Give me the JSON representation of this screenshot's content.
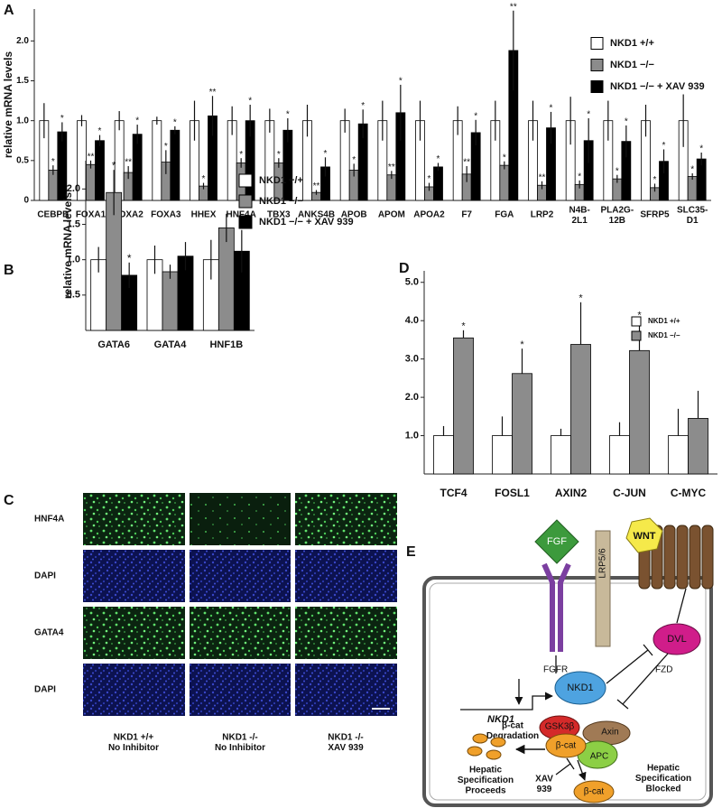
{
  "panel_labels": [
    "A",
    "B",
    "C",
    "D",
    "E"
  ],
  "chart_data": [
    {
      "type": "bar",
      "ylabel": "relative mRNA levels",
      "categories": [
        "CEBPB",
        "FOXA1",
        "FOXA2",
        "FOXA3",
        "HHEX",
        "HNF4A",
        "TBX3",
        "ANKS4B",
        "APOB",
        "APOM",
        "APOA2",
        "F7",
        "FGA",
        "LRP2",
        "N4B-\n2L1",
        "PLA2G-\n12B",
        "SFRP5",
        "SLC35-\nD1"
      ],
      "series": [
        {
          "name": "NKD1 +/+",
          "color": "#ffffff",
          "values": [
            1,
            1,
            1,
            1,
            1,
            1,
            1,
            1,
            1,
            1,
            1,
            1,
            1,
            1,
            1,
            1,
            1,
            1
          ],
          "errors": [
            0.22,
            0.07,
            0.12,
            0.05,
            0.25,
            0.18,
            0.15,
            0.2,
            0.15,
            0.25,
            0.25,
            0.18,
            0.25,
            0.25,
            0.3,
            0.25,
            0.2,
            0.33
          ],
          "significance": [
            null,
            null,
            null,
            null,
            null,
            null,
            null,
            null,
            null,
            null,
            null,
            null,
            null,
            null,
            null,
            null,
            null,
            null
          ]
        },
        {
          "name": "NKD1 −/−",
          "color": "#8c8c8c",
          "values": [
            0.38,
            0.45,
            0.35,
            0.48,
            0.18,
            0.47,
            0.47,
            0.1,
            0.38,
            0.32,
            0.17,
            0.33,
            0.44,
            0.19,
            0.2,
            0.27,
            0.16,
            0.3
          ],
          "errors": [
            0.06,
            0.05,
            0.08,
            0.15,
            0.04,
            0.06,
            0.06,
            0.03,
            0.08,
            0.05,
            0.05,
            0.1,
            0.05,
            0.05,
            0.05,
            0.05,
            0.05,
            0.04
          ],
          "significance": [
            "*",
            "**",
            "**",
            "*",
            "*",
            "*",
            "*",
            "**",
            "*",
            "**",
            "*",
            "**",
            "*",
            "**",
            "*",
            "*",
            "*",
            "*"
          ]
        },
        {
          "name": "NKD1 −/− + XAV 939",
          "color": "#000000",
          "values": [
            0.86,
            0.75,
            0.83,
            0.88,
            1.06,
            1,
            0.88,
            0.42,
            0.96,
            1.1,
            0.42,
            0.85,
            1.88,
            0.91,
            0.75,
            0.74,
            0.49,
            0.52
          ],
          "errors": [
            0.12,
            0.07,
            0.12,
            0.05,
            0.25,
            0.2,
            0.15,
            0.12,
            0.18,
            0.35,
            0.05,
            0.16,
            0.5,
            0.2,
            0.28,
            0.2,
            0.15,
            0.08
          ],
          "significance": [
            "*",
            "*",
            "*",
            "*",
            "**",
            "*",
            "*",
            "*",
            "*",
            "*",
            "*",
            "*",
            "**",
            "*",
            "*",
            "*",
            "*",
            "*"
          ]
        }
      ],
      "ylim": [
        0,
        2.4
      ],
      "yticks": [
        0,
        0.5,
        {
          "value": 1,
          "label": "1.0"
        },
        1.5,
        {
          "value": 2,
          "label": "2.0"
        }
      ],
      "error_bars": "both",
      "legend": "upper right"
    },
    {
      "type": "bar",
      "ylabel": "relative mRNA levels",
      "categories": [
        "GATA6",
        "GATA4",
        "HNF1B"
      ],
      "series": [
        {
          "name": "NKD1 +/+",
          "color": "#ffffff",
          "values": [
            1,
            1,
            1
          ],
          "errors": [
            0.18,
            0.2,
            0.28
          ],
          "significance": [
            null,
            null,
            null
          ]
        },
        {
          "name": "NKD1 −/−",
          "color": "#8c8c8c",
          "values": [
            1.95,
            0.83,
            1.45
          ],
          "errors": [
            0.32,
            0.1,
            0.2
          ],
          "significance": [
            "*",
            null,
            null
          ]
        },
        {
          "name": "NKD1 −/− + XAV 939",
          "color": "#000000",
          "values": [
            0.78,
            1.05,
            1.12
          ],
          "errors": [
            0.18,
            0.2,
            0.3
          ],
          "significance": [
            "*",
            null,
            null
          ]
        }
      ],
      "ylim": [
        0,
        2.4
      ],
      "yticks": [
        0.5,
        {
          "value": 1,
          "label": "1.0"
        },
        1.5,
        {
          "value": 2,
          "label": "2.0"
        }
      ],
      "error_bars": "both",
      "legend": "upper right"
    },
    {
      "type": "bar",
      "categories": [
        "TCF4",
        "FOSL1",
        "AXIN2",
        "C-JUN",
        "C-MYC"
      ],
      "series": [
        {
          "name": "NKD1 +/+",
          "color": "#ffffff",
          "values": [
            1,
            1,
            1,
            1,
            1
          ],
          "errors": [
            0.25,
            0.5,
            0.18,
            0.35,
            0.7
          ],
          "significance": [
            null,
            null,
            null,
            null,
            null
          ]
        },
        {
          "name": "NKD1 −/−",
          "color": "#8c8c8c",
          "values": [
            3.55,
            2.62,
            3.38,
            3.22,
            1.45
          ],
          "errors": [
            0.2,
            0.65,
            1.1,
            0.82,
            0.72
          ],
          "significance": [
            "*",
            "*",
            "*",
            "*",
            null
          ]
        }
      ],
      "ylim": [
        0,
        5.3
      ],
      "yticks": [
        {
          "value": 1,
          "label": "1.0"
        },
        {
          "value": 2,
          "label": "2.0"
        },
        {
          "value": 3,
          "label": "3.0"
        },
        {
          "value": 4,
          "label": "4.0"
        },
        {
          "value": 5,
          "label": "5.0"
        }
      ],
      "error_bars": "up",
      "legend": "upper right"
    }
  ],
  "image_panel": {
    "row_labels": [
      "HNF4A",
      "DAPI",
      "GATA4",
      "DAPI"
    ],
    "column_labels": [
      "NKD1 +/+\nNo Inhibitor",
      "NKD1 -/-\nNo Inhibitor",
      "NKD1 -/-\nXAV 939"
    ]
  },
  "diagram": {
    "fgf": "FGF",
    "wnt": "WNT",
    "lrp": "LRP5/6",
    "fgfr": "FGFR",
    "fzd": "FZD",
    "dvl": "DVL",
    "nkd1_protein": "NKD1",
    "nkd1_gene": "NKD1",
    "gsk3b": "GSK3β",
    "axin": "Axin",
    "beta_cat": "β-cat",
    "apc": "APC",
    "degradation": "β-cat\nDegradation",
    "proceeds": "Hepatic\nSpecification\nProceeds",
    "xav": "XAV\n939",
    "beta_cat_free": "β-cat",
    "blocked": "Hepatic\nSpecification\nBlocked"
  }
}
